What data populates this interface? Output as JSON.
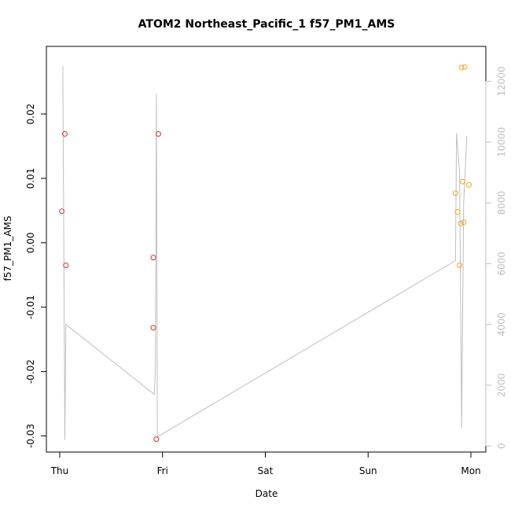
{
  "chart_data": {
    "type": "scatter",
    "title": "ATOM2 Northeast_Pacific_1 f57_PM1_AMS",
    "xlabel": "Date",
    "ylabel": "f57_PM1_AMS",
    "x_ticks": [
      "Thu",
      "Fri",
      "Sat",
      "Sun",
      "Mon"
    ],
    "x_range_days": [
      0,
      4.2
    ],
    "ylim": [
      -0.0325,
      0.0305
    ],
    "y_ticks": [
      -0.03,
      -0.02,
      -0.01,
      0.0,
      0.01,
      0.02
    ],
    "y_tick_labels": [
      "-0.03",
      "-0.02",
      "-0.01",
      "0.00",
      "0.01",
      "0.02"
    ],
    "y2lim": [
      -200,
      13150
    ],
    "y2_ticks": [
      0,
      2000,
      4000,
      6000,
      8000,
      10000,
      12000
    ],
    "y2_tick_labels": [
      "0",
      "2000",
      "4000",
      "6000",
      "8000",
      "10000",
      "12000"
    ],
    "colors": {
      "series_red": "#df2e2e",
      "series_orange": "#f5a623",
      "line_gray": "#bebebe",
      "axis": "#000000"
    },
    "series": [
      {
        "color": "#df2e2e",
        "x": [
          0.02,
          0.05,
          0.06,
          0.91,
          0.91,
          0.94,
          0.96
        ],
        "y": [
          0.0049,
          0.0169,
          -0.0035,
          -0.0023,
          -0.0132,
          -0.0305,
          0.0169
        ]
      },
      {
        "color": "#f5a623",
        "x": [
          3.85,
          3.87,
          3.89,
          3.9,
          3.91,
          3.92,
          3.93,
          3.94,
          3.98
        ],
        "y": [
          0.0077,
          0.0048,
          -0.0035,
          0.003,
          0.0272,
          0.0095,
          0.0032,
          0.0273,
          0.009
        ]
      }
    ],
    "secondary_line": {
      "color": "#bebebe",
      "x": [
        0.03,
        0.05,
        0.06,
        0.92,
        0.93,
        0.94,
        0.95,
        3.85,
        3.86,
        3.89,
        3.91,
        3.93,
        3.96
      ],
      "y": [
        12500,
        200,
        4000,
        1700,
        2500,
        11600,
        300,
        6100,
        10300,
        9000,
        600,
        8000,
        10200
      ]
    }
  }
}
